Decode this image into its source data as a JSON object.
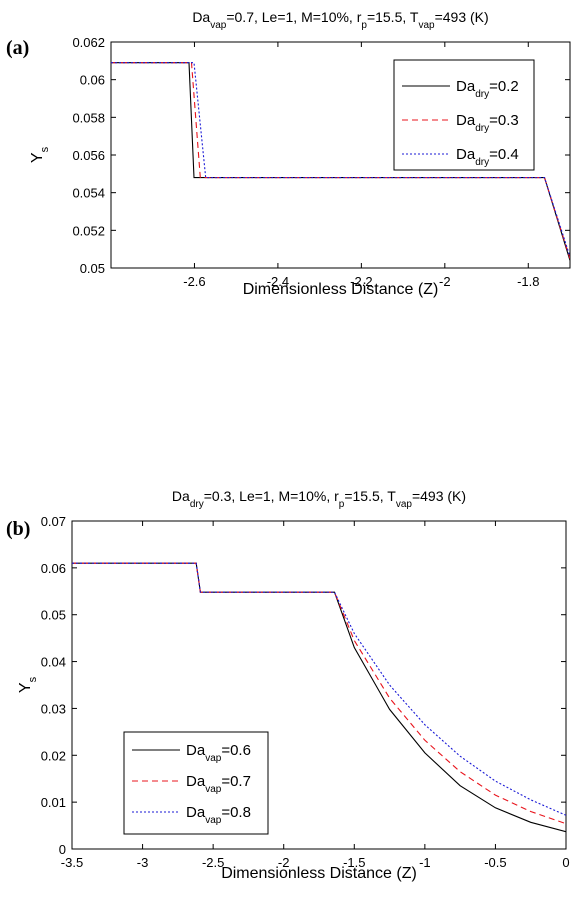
{
  "figure": {
    "panels": [
      {
        "panel_label": "(a)",
        "title": {
          "t1": "Da",
          "t1_sub": "vap",
          "t2": "=0.7, Le=1, M=10%, r",
          "t2_sub": "p",
          "t3": "=15.5, T",
          "t3_sub": "vap",
          "t4": "=493 (K)"
        },
        "ylabel": {
          "main": "Y",
          "sub": "s"
        },
        "xlabel": "Dimensionless Distance (Z)"
      },
      {
        "panel_label": "(b)",
        "title": {
          "t1": "Da",
          "t1_sub": "dry",
          "t2": "=0.3, Le=1, M=10%, r",
          "t2_sub": "p",
          "t3": "=15.5, T",
          "t3_sub": "vap",
          "t4": "=493 (K)"
        },
        "ylabel": {
          "main": "Y",
          "sub": "s"
        },
        "xlabel": "Dimensionless Distance (Z)"
      }
    ]
  },
  "chart_data": [
    {
      "type": "line",
      "panel": "(a)",
      "title": "Da_vap=0.7, Le=1, M=10%, r_p=15.5, T_vap=493 (K)",
      "xlabel": "Dimensionless Distance (Z)",
      "ylabel": "Y_s",
      "xlim": [
        -2.8,
        -1.7
      ],
      "ylim": [
        0.05,
        0.062
      ],
      "xticks": [
        -2.6,
        -2.4,
        -2.2,
        -2,
        -1.8
      ],
      "xtick_labels": [
        "-2.6",
        "-2.4",
        "-2.2",
        "-2",
        "-1.8"
      ],
      "yticks": [
        0.05,
        0.052,
        0.054,
        0.056,
        0.058,
        0.06,
        0.062
      ],
      "ytick_labels": [
        "0.05",
        "0.052",
        "0.054",
        "0.056",
        "0.058",
        "0.06",
        "0.062"
      ],
      "grid": false,
      "legend_position": "top-right",
      "series": [
        {
          "name_main": "Da",
          "name_sub": "dry",
          "name_value": "=0.2",
          "color": "#000000",
          "dash": "",
          "x": [
            -2.8,
            -2.613,
            -2.601,
            -1.761,
            -1.7
          ],
          "y": [
            0.0609,
            0.0609,
            0.0548,
            0.0548,
            0.0504
          ]
        },
        {
          "name_main": "Da",
          "name_sub": "dry",
          "name_value": "=0.3",
          "color": "#e8141c",
          "dash": "6,4",
          "x": [
            -2.8,
            -2.607,
            -2.586,
            -1.761,
            -1.7
          ],
          "y": [
            0.0609,
            0.0609,
            0.0548,
            0.0548,
            0.0505
          ]
        },
        {
          "name_main": "Da",
          "name_sub": "dry",
          "name_value": "=0.4",
          "color": "#1a1ad6",
          "dash": "2,2",
          "x": [
            -2.8,
            -2.601,
            -2.573,
            -1.761,
            -1.7
          ],
          "y": [
            0.0609,
            0.0609,
            0.0548,
            0.0548,
            0.0506
          ]
        }
      ]
    },
    {
      "type": "line",
      "panel": "(b)",
      "title": "Da_dry=0.3, Le=1, M=10%, r_p=15.5, T_vap=493 (K)",
      "xlabel": "Dimensionless Distance (Z)",
      "ylabel": "Y_s",
      "xlim": [
        -3.5,
        0
      ],
      "ylim": [
        0,
        0.07
      ],
      "xticks": [
        -3.5,
        -3,
        -2.5,
        -2,
        -1.5,
        -1,
        -0.5,
        0
      ],
      "xtick_labels": [
        "-3.5",
        "-3",
        "-2.5",
        "-2",
        "-1.5",
        "-1",
        "-0.5",
        "0"
      ],
      "yticks": [
        0,
        0.01,
        0.02,
        0.03,
        0.04,
        0.05,
        0.06,
        0.07
      ],
      "ytick_labels": [
        "0",
        "0.01",
        "0.02",
        "0.03",
        "0.04",
        "0.05",
        "0.06",
        "0.07"
      ],
      "grid": false,
      "legend_position": "bottom-left",
      "series": [
        {
          "name_main": "Da",
          "name_sub": "vap",
          "name_value": "=0.6",
          "color": "#000000",
          "dash": "",
          "x": [
            -3.5,
            -2.62,
            -2.59,
            -1.64,
            -1.5,
            -1.25,
            -1.0,
            -0.75,
            -0.5,
            -0.25,
            0
          ],
          "y": [
            0.061,
            0.061,
            0.0548,
            0.0548,
            0.043,
            0.0298,
            0.0205,
            0.0135,
            0.0088,
            0.0057,
            0.0037
          ]
        },
        {
          "name_main": "Da",
          "name_sub": "vap",
          "name_value": "=0.7",
          "color": "#e8141c",
          "dash": "6,4",
          "x": [
            -3.5,
            -2.62,
            -2.59,
            -1.64,
            -1.5,
            -1.25,
            -1.0,
            -0.75,
            -0.5,
            -0.25,
            0
          ],
          "y": [
            0.061,
            0.061,
            0.0548,
            0.0548,
            0.0445,
            0.0322,
            0.0232,
            0.0165,
            0.0115,
            0.008,
            0.0054
          ]
        },
        {
          "name_main": "Da",
          "name_sub": "vap",
          "name_value": "=0.8",
          "color": "#1a1ad6",
          "dash": "2,2",
          "x": [
            -3.5,
            -2.62,
            -2.59,
            -1.64,
            -1.5,
            -1.25,
            -1.0,
            -0.75,
            -0.5,
            -0.25,
            0
          ],
          "y": [
            0.061,
            0.061,
            0.0548,
            0.0548,
            0.046,
            0.035,
            0.0265,
            0.0198,
            0.0145,
            0.0105,
            0.0072
          ]
        }
      ]
    }
  ]
}
